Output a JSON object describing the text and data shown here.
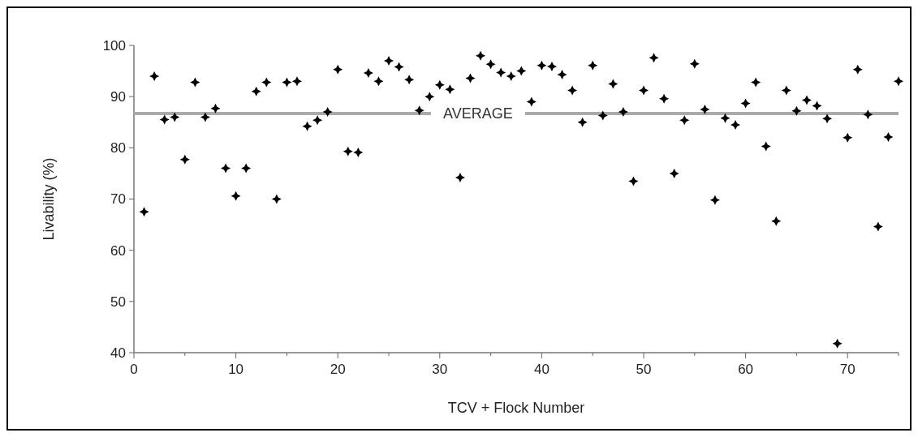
{
  "chart_data": {
    "type": "scatter",
    "xlabel": "TCV + Flock Number",
    "ylabel": "Livability (%)",
    "x": [
      1,
      2,
      3,
      4,
      5,
      6,
      7,
      8,
      9,
      10,
      11,
      12,
      13,
      14,
      15,
      16,
      17,
      18,
      19,
      20,
      21,
      22,
      23,
      24,
      25,
      26,
      27,
      28,
      29,
      30,
      31,
      32,
      33,
      34,
      35,
      36,
      37,
      38,
      39,
      40,
      41,
      42,
      43,
      44,
      45,
      46,
      47,
      48,
      49,
      50,
      51,
      52,
      53,
      54,
      55,
      56,
      57,
      58,
      59,
      60,
      61,
      62,
      63,
      64,
      65,
      66,
      67,
      68,
      69,
      70,
      71,
      72,
      73,
      74,
      75
    ],
    "series": [
      {
        "color": "#000000",
        "values": [
          67.5,
          94,
          85.5,
          86,
          77.7,
          92.8,
          86,
          87.7,
          76,
          70.6,
          76,
          91,
          92.8,
          70,
          92.8,
          93,
          84.2,
          85.4,
          87,
          95.3,
          79.3,
          79.1,
          94.6,
          93,
          97,
          95.8,
          93.3,
          87.3,
          90,
          92.3,
          91.4,
          74.2,
          93.6,
          98,
          96.3,
          94.7,
          94,
          95,
          89,
          96.1,
          95.9,
          94.3,
          91.2,
          85,
          96.1,
          86.3,
          92.5,
          87,
          73.5,
          91.2,
          97.6,
          89.6,
          75,
          85.4,
          96.4,
          87.5,
          69.8,
          85.8,
          84.5,
          88.7,
          92.8,
          80.3,
          65.7,
          91.2,
          87.2,
          89.3,
          88.2,
          85.7,
          41.8,
          82,
          95.3,
          86.5,
          64.6,
          82.1,
          93
        ]
      }
    ],
    "xlim": [
      0,
      75
    ],
    "xticks": [
      0,
      {
        "value": 5,
        "label": null
      },
      10,
      {
        "value": 15,
        "label": null
      },
      20,
      {
        "value": 25,
        "label": null
      },
      30,
      {
        "value": 35,
        "label": null
      },
      40,
      {
        "value": 45,
        "label": null
      },
      50,
      {
        "value": 55,
        "label": null
      },
      60,
      {
        "value": 65,
        "label": null
      },
      70,
      {
        "value": 75,
        "label": null
      }
    ],
    "ylim": [
      40,
      100
    ],
    "yticks": [
      40,
      50,
      60,
      70,
      80,
      90,
      100
    ],
    "ref_lines": [
      {
        "axis": "y",
        "value": 86.7,
        "label": "AVERAGE",
        "color": "#aaaaaa"
      }
    ],
    "marker": "cross",
    "grid": false
  }
}
